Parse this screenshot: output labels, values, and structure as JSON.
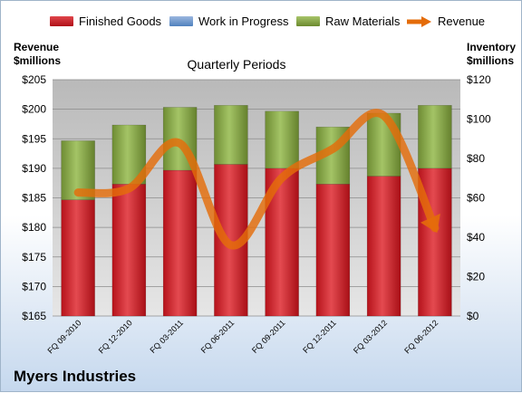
{
  "chart_data": {
    "type": "bar",
    "title": "",
    "subtitle": "Quarterly Periods",
    "company": "Myers Industries",
    "ylabel_left": [
      "Revenue",
      "$millions"
    ],
    "ylabel_right": [
      "Inventory",
      "$millions"
    ],
    "categories": [
      "FQ 09-2010",
      "FQ 12-2010",
      "FQ 03-2011",
      "FQ 06-2011",
      "FQ 09-2011",
      "FQ 12-2011",
      "FQ 03-2012",
      "FQ 06-2012"
    ],
    "left_axis": {
      "min": 165,
      "max": 205,
      "ticks": [
        "$165",
        "$170",
        "$175",
        "$180",
        "$185",
        "$190",
        "$195",
        "$200",
        "$205"
      ]
    },
    "right_axis": {
      "min": 0,
      "max": 120,
      "ticks": [
        "$0",
        "$20",
        "$40",
        "$60",
        "$80",
        "$100",
        "$120"
      ]
    },
    "series": [
      {
        "name": "Finished Goods",
        "axis": "right",
        "color": "#c0141c",
        "values": [
          59,
          67,
          74,
          77,
          75,
          67,
          71,
          75
        ]
      },
      {
        "name": "Work in Progress",
        "axis": "right",
        "color": "#4f81bd",
        "values": [
          0,
          0,
          0,
          0,
          0,
          0,
          0,
          0
        ]
      },
      {
        "name": "Raw Materials",
        "axis": "right",
        "color": "#77933c",
        "values": [
          30,
          30,
          32,
          30,
          29,
          29,
          32,
          32
        ]
      },
      {
        "name": "Revenue",
        "axis": "left",
        "color": "#e46c0a",
        "type": "line",
        "values": [
          185.9,
          186.6,
          194.2,
          177.0,
          188.4,
          193.3,
          198.9,
          179.9
        ]
      }
    ],
    "grid": true,
    "legend": "top"
  }
}
